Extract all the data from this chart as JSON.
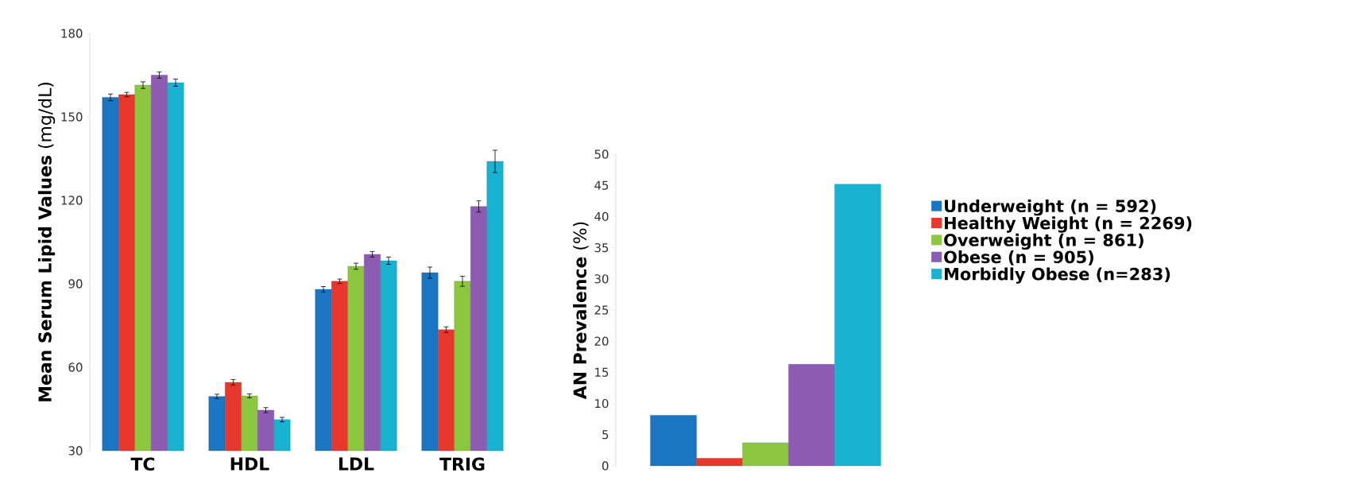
{
  "chart_data": [
    {
      "type": "bar",
      "ylabel": "**Mean Serum Lipid Values** (mg/dL)",
      "categories": [
        "TC",
        "HDL",
        "LDL",
        "TRIG"
      ],
      "ylim": [
        30,
        180
      ],
      "yticks": [
        30,
        60,
        90,
        120,
        150,
        180
      ],
      "legend": "right",
      "series": [
        {
          "name": "Underweight (n = 592)",
          "color": "#1a76c2",
          "values": [
            157,
            49.5,
            88,
            94
          ],
          "errors": [
            1.2,
            0.8,
            1,
            2
          ]
        },
        {
          "name": "Healthy Weight (n = 2269)",
          "color": "#e8382e",
          "values": [
            158,
            54.6,
            90.9,
            73.5
          ],
          "errors": [
            0.8,
            1,
            0.8,
            1
          ]
        },
        {
          "name": "Overweight (n = 861)",
          "color": "#8dc63f",
          "values": [
            161.4,
            49.7,
            96.3,
            90.9
          ],
          "errors": [
            1.2,
            0.7,
            1.1,
            1.8
          ]
        },
        {
          "name": "Obese (n = 905)",
          "color": "#8e5bb3",
          "values": [
            165,
            44.6,
            100.6,
            117.8
          ],
          "errors": [
            1.1,
            0.9,
            1,
            2
          ]
        },
        {
          "name": "Morbidly Obese (n=283)",
          "color": "#17b3d0",
          "values": [
            162.3,
            41.2,
            98.3,
            134
          ],
          "errors": [
            1.3,
            0.8,
            1.3,
            4
          ]
        }
      ]
    },
    {
      "type": "bar",
      "ylabel": "**AN Prevalence** (%)",
      "categories": [
        null,
        null,
        null,
        null,
        null
      ],
      "ylim": [
        0,
        50
      ],
      "yticks": [
        0,
        5,
        10,
        15,
        20,
        25,
        30,
        35,
        40,
        45,
        50
      ],
      "values": [
        8.1,
        1.2,
        3.7,
        16.3,
        45.2
      ],
      "colors": [
        "#1a76c2",
        "#e8382e",
        "#8dc63f",
        "#8e5bb3",
        "#17b3d0"
      ]
    }
  ]
}
